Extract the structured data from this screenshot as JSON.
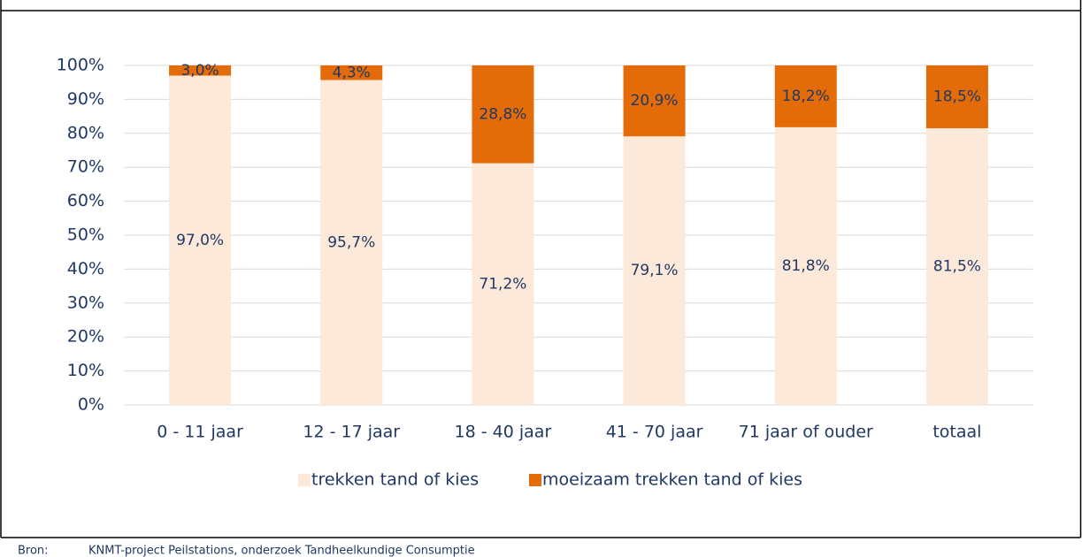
{
  "chart_data": {
    "type": "stacked_bar",
    "categories": [
      "0 - 11 jaar",
      "12 - 17 jaar",
      "18 - 40 jaar",
      "41 - 70 jaar",
      "71 jaar of ouder",
      "totaal"
    ],
    "series": [
      {
        "name": "trekken tand of kies",
        "color": "#fde9d9",
        "values": [
          97.0,
          95.7,
          71.2,
          79.1,
          81.8,
          81.5
        ],
        "value_labels": [
          "97,0%",
          "95,7%",
          "71,2%",
          "79,1%",
          "81,8%",
          "81,5%"
        ]
      },
      {
        "name": "moeizaam trekken tand of kies",
        "color": "#e36c09",
        "values": [
          3.0,
          4.3,
          28.8,
          20.9,
          18.2,
          18.5
        ],
        "value_labels": [
          "3,0%",
          "4,3%",
          "28,8%",
          "20,9%",
          "18,2%",
          "18,5%"
        ]
      }
    ],
    "ylim": [
      0,
      100
    ],
    "yticks": [
      {
        "value": 0,
        "label": "0%"
      },
      {
        "value": 10,
        "label": "10%"
      },
      {
        "value": 20,
        "label": "20%"
      },
      {
        "value": 30,
        "label": "30%"
      },
      {
        "value": 40,
        "label": "40%"
      },
      {
        "value": 50,
        "label": "50%"
      },
      {
        "value": 60,
        "label": "60%"
      },
      {
        "value": 70,
        "label": "70%"
      },
      {
        "value": 80,
        "label": "80%"
      },
      {
        "value": 90,
        "label": "90%"
      },
      {
        "value": 100,
        "label": "100%"
      }
    ],
    "grid": true,
    "legend": "bottom",
    "source_label": "Bron:",
    "source": "KNMT-project Peilstations, onderzoek Tandheelkundige Consumptie"
  }
}
